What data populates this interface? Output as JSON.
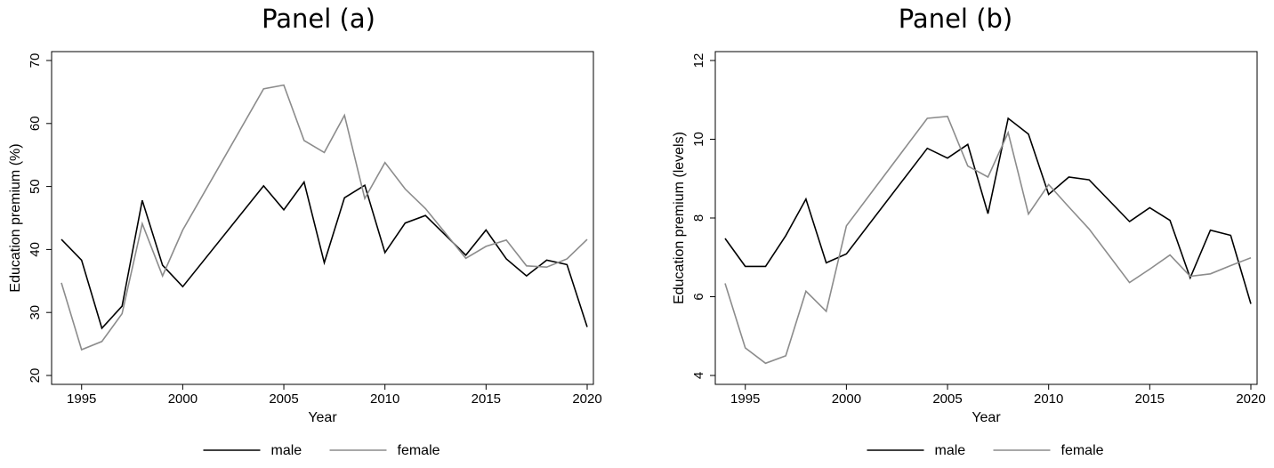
{
  "chart_data": [
    {
      "type": "line",
      "title": "Panel (a)",
      "xlabel": "Year",
      "ylabel": "Education premium (%)",
      "xlim": [
        1994,
        2020
      ],
      "ylim": [
        20,
        70
      ],
      "xticks": [
        1995,
        2000,
        2005,
        2010,
        2015,
        2020
      ],
      "yticks": [
        20,
        30,
        40,
        50,
        60,
        70
      ],
      "legend_position": "bottom",
      "grid": false,
      "series": [
        {
          "name": "male",
          "color": "#000000",
          "x": [
            1994,
            1995,
            1996,
            1997,
            1998,
            1999,
            2000,
            2004,
            2005,
            2006,
            2007,
            2008,
            2009,
            2010,
            2011,
            2012,
            2014,
            2015,
            2016,
            2017,
            2018,
            2019,
            2020
          ],
          "y": [
            41.6,
            38.3,
            27.5,
            31.0,
            47.8,
            37.5,
            34.1,
            50.1,
            46.3,
            50.7,
            37.9,
            48.2,
            50.2,
            39.5,
            44.2,
            45.4,
            39.1,
            43.1,
            38.5,
            35.8,
            38.3,
            37.6,
            27.7
          ]
        },
        {
          "name": "female",
          "color": "#8c8c8c",
          "x": [
            1994,
            1995,
            1996,
            1997,
            1998,
            1999,
            2000,
            2004,
            2005,
            2006,
            2007,
            2008,
            2009,
            2010,
            2011,
            2012,
            2014,
            2015,
            2016,
            2017,
            2018,
            2019,
            2020
          ],
          "y": [
            34.7,
            24.1,
            25.4,
            29.8,
            44.1,
            35.8,
            43.1,
            65.5,
            66.1,
            57.3,
            55.4,
            61.3,
            48.1,
            53.8,
            49.6,
            46.5,
            38.6,
            40.5,
            41.5,
            37.4,
            37.2,
            38.5,
            41.6
          ]
        }
      ]
    },
    {
      "type": "line",
      "title": "Panel (b)",
      "xlabel": "Year",
      "ylabel": "Education premium (levels)",
      "xlim": [
        1994,
        2020
      ],
      "ylim": [
        4,
        12
      ],
      "xticks": [
        1995,
        2000,
        2005,
        2010,
        2015,
        2020
      ],
      "yticks": [
        4,
        6,
        8,
        10,
        12
      ],
      "legend_position": "bottom",
      "grid": false,
      "series": [
        {
          "name": "male",
          "color": "#000000",
          "x": [
            1994,
            1995,
            1996,
            1997,
            1998,
            1999,
            2000,
            2004,
            2005,
            2006,
            2007,
            2008,
            2009,
            2010,
            2011,
            2012,
            2014,
            2015,
            2016,
            2017,
            2018,
            2019,
            2020
          ],
          "y": [
            7.48,
            6.77,
            6.77,
            7.55,
            8.48,
            6.86,
            7.09,
            9.77,
            9.52,
            9.87,
            8.11,
            10.53,
            10.13,
            8.6,
            9.04,
            8.97,
            7.91,
            8.26,
            7.94,
            6.48,
            7.69,
            7.56,
            5.82
          ]
        },
        {
          "name": "female",
          "color": "#8c8c8c",
          "x": [
            1994,
            1995,
            1996,
            1997,
            1998,
            1999,
            2000,
            2004,
            2005,
            2006,
            2007,
            2008,
            2009,
            2010,
            2011,
            2012,
            2014,
            2015,
            2016,
            2017,
            2018,
            2019,
            2020
          ],
          "y": [
            6.34,
            4.7,
            4.31,
            4.5,
            6.14,
            5.63,
            7.8,
            10.53,
            10.58,
            9.32,
            9.04,
            10.17,
            8.1,
            8.85,
            8.28,
            7.72,
            6.36,
            6.7,
            7.06,
            6.52,
            6.58,
            6.79,
            6.99
          ]
        }
      ]
    }
  ]
}
